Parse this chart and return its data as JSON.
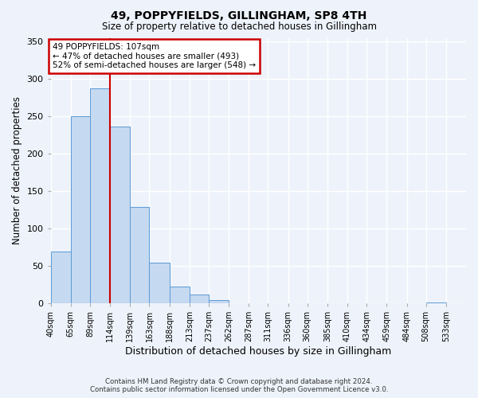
{
  "title": "49, POPPYFIELDS, GILLINGHAM, SP8 4TH",
  "subtitle": "Size of property relative to detached houses in Gillingham",
  "xlabel": "Distribution of detached houses by size in Gillingham",
  "ylabel": "Number of detached properties",
  "bin_labels": [
    "40sqm",
    "65sqm",
    "89sqm",
    "114sqm",
    "139sqm",
    "163sqm",
    "188sqm",
    "213sqm",
    "237sqm",
    "262sqm",
    "287sqm",
    "311sqm",
    "336sqm",
    "360sqm",
    "385sqm",
    "410sqm",
    "434sqm",
    "459sqm",
    "484sqm",
    "508sqm",
    "533sqm"
  ],
  "bar_heights": [
    69,
    250,
    287,
    236,
    128,
    54,
    22,
    11,
    4,
    0,
    0,
    0,
    0,
    0,
    0,
    0,
    0,
    0,
    0,
    1,
    0
  ],
  "bar_color": "#c5d9f0",
  "bar_edge_color": "#5b9bd5",
  "property_line_x": 114,
  "property_line_label": "107sqm",
  "property_name": "49 POPPYFIELDS",
  "pct_smaller": 47,
  "count_smaller": 493,
  "pct_larger_semi": 52,
  "count_larger_semi": 548,
  "annotation_box_color": "#ffffff",
  "annotation_border_color": "#cc0000",
  "red_line_color": "#cc0000",
  "ylim": [
    0,
    355
  ],
  "yticks": [
    0,
    50,
    100,
    150,
    200,
    250,
    300,
    350
  ],
  "footer_line1": "Contains HM Land Registry data © Crown copyright and database right 2024.",
  "footer_line2": "Contains public sector information licensed under the Open Government Licence v3.0.",
  "background_color": "#eef3fb",
  "grid_color": "#ffffff",
  "bin_edges_sqm": [
    40,
    65,
    89,
    114,
    139,
    163,
    188,
    213,
    237,
    262,
    287,
    311,
    336,
    360,
    385,
    410,
    434,
    459,
    484,
    508,
    533,
    558
  ]
}
